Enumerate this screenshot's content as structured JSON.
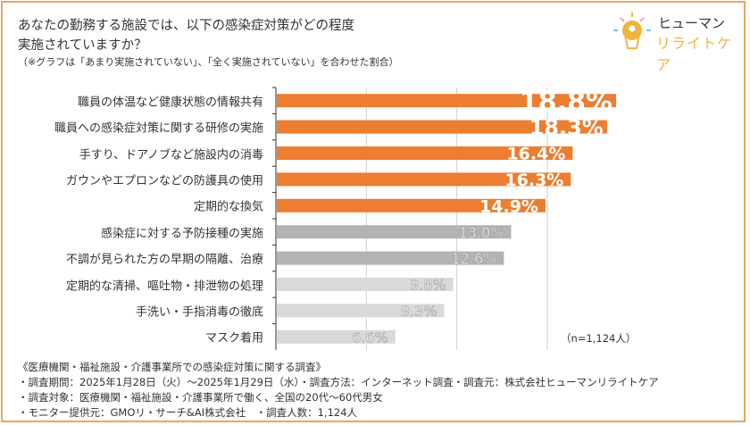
{
  "question": {
    "line1": "あなたの勤務する施設では、以下の感染症対策がどの程度",
    "line2": "実施されていますか？",
    "note": "（※グラフは「あまり実施されていない」、「全く実施されていない」を合わせた割合）"
  },
  "logo": {
    "line1": "ヒューマン",
    "line2": "リライトケア"
  },
  "chart_data": {
    "type": "bar",
    "orientation": "horizontal",
    "categories": [
      "職員の体温など健康状態の情報共有",
      "職員への感染症対策に関する研修の実施",
      "手すり、ドアノブなど施設内の消毒",
      "ガウンやエプロンなどの防護具の使用",
      "定期的な換気",
      "感染症に対する予防接種の実施",
      "不調が見られた方の早期の隔離、治療",
      "定期的な清掃、嘔吐物・排泄物の処理",
      "手洗い・手指消毒の徹底",
      "マスク着用"
    ],
    "values": [
      18.8,
      18.3,
      16.4,
      16.3,
      14.9,
      13.0,
      12.6,
      9.8,
      9.3,
      6.6
    ],
    "data_labels": [
      "18.8%",
      "18.3%",
      "16.4%",
      "16.3%",
      "14.9%",
      "13.0%",
      "12.6%",
      "9.8%",
      "9.3%",
      "6.6%"
    ],
    "xlim": [
      0,
      20
    ],
    "gridlines": [
      5,
      10,
      15
    ],
    "grid": true,
    "colors": [
      "#ec7d31",
      "#ec7d31",
      "#ec7d31",
      "#ec7d31",
      "#ec7d31",
      "#b3b3b3",
      "#b3b3b3",
      "#d9d9d9",
      "#d9d9d9",
      "#d9d9d9"
    ],
    "sample_note": "（n=1,124人）"
  },
  "footer": {
    "title": "《医療機関・福祉施設・介護事業所での感染症対策に関する調査》",
    "line1": "・調査期間：2025年1月28日（火）～2025年1月29日（水）・調査方法：インターネット調査・調査元：株式会社ヒューマンリライトケア",
    "line2": "・調査対象：医療機関・福祉施設・介護事業所で働く、全国の20代～60代男女",
    "line3": "・モニター提供元：GMOリ・サーチ&AI株式会社　・調査人数：1,124人"
  }
}
